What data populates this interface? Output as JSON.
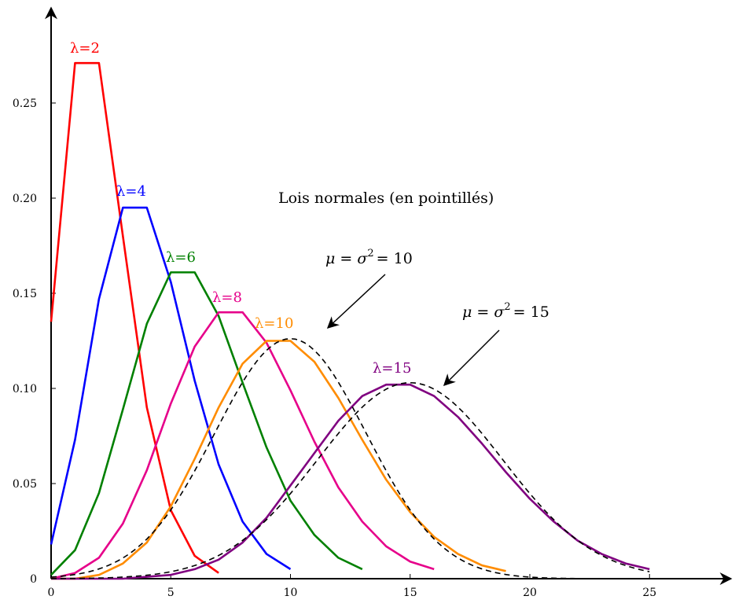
{
  "chart_data": {
    "type": "line",
    "title": "",
    "xlabel": "",
    "ylabel": "",
    "xlim": [
      0,
      28.5
    ],
    "ylim": [
      0,
      0.29
    ],
    "x_ticks": [
      "0",
      "5",
      "10",
      "15",
      "20",
      "25"
    ],
    "y_ticks": [
      "0",
      "0.05",
      "0.10",
      "0.15",
      "0.20",
      "0.25"
    ],
    "grid": false,
    "series": [
      {
        "name": "λ=2",
        "color": "#ff0000",
        "style": "solid",
        "x": [
          0,
          1,
          2,
          3,
          4,
          5,
          6,
          7
        ],
        "y": [
          0.135,
          0.271,
          0.271,
          0.18,
          0.09,
          0.036,
          0.012,
          0.003
        ]
      },
      {
        "name": "λ=4",
        "color": "#0000ff",
        "style": "solid",
        "x": [
          0,
          1,
          2,
          3,
          4,
          5,
          6,
          7,
          8,
          9,
          10
        ],
        "y": [
          0.018,
          0.073,
          0.147,
          0.195,
          0.195,
          0.156,
          0.104,
          0.06,
          0.03,
          0.013,
          0.005
        ]
      },
      {
        "name": "λ=6",
        "color": "#008000",
        "style": "solid",
        "x": [
          0,
          1,
          2,
          3,
          4,
          5,
          6,
          7,
          8,
          9,
          10,
          11,
          12,
          13
        ],
        "y": [
          0.002,
          0.015,
          0.045,
          0.089,
          0.134,
          0.161,
          0.161,
          0.138,
          0.103,
          0.069,
          0.041,
          0.023,
          0.011,
          0.005
        ]
      },
      {
        "name": "λ=8",
        "color": "#e6008a",
        "style": "solid",
        "x": [
          0,
          1,
          2,
          3,
          4,
          5,
          6,
          7,
          8,
          9,
          10,
          11,
          12,
          13,
          14,
          15,
          16
        ],
        "y": [
          0.0,
          0.003,
          0.011,
          0.029,
          0.057,
          0.092,
          0.122,
          0.14,
          0.14,
          0.124,
          0.099,
          0.072,
          0.048,
          0.03,
          0.017,
          0.009,
          0.005
        ]
      },
      {
        "name": "λ=10",
        "color": "#ff8c00",
        "style": "solid",
        "x": [
          0,
          1,
          2,
          3,
          4,
          5,
          6,
          7,
          8,
          9,
          10,
          11,
          12,
          13,
          14,
          15,
          16,
          17,
          18,
          19
        ],
        "y": [
          0.0,
          0.0,
          0.002,
          0.008,
          0.019,
          0.038,
          0.063,
          0.09,
          0.113,
          0.125,
          0.125,
          0.114,
          0.095,
          0.073,
          0.052,
          0.035,
          0.022,
          0.013,
          0.007,
          0.004
        ]
      },
      {
        "name": "λ=15",
        "color": "#800080",
        "style": "solid",
        "x": [
          0,
          1,
          2,
          3,
          4,
          5,
          6,
          7,
          8,
          9,
          10,
          11,
          12,
          13,
          14,
          15,
          16,
          17,
          18,
          19,
          20,
          21,
          22,
          23,
          24,
          25
        ],
        "y": [
          0.0,
          0.0,
          0.0,
          0.0,
          0.001,
          0.002,
          0.005,
          0.01,
          0.019,
          0.032,
          0.049,
          0.066,
          0.083,
          0.096,
          0.102,
          0.102,
          0.096,
          0.085,
          0.071,
          0.056,
          0.042,
          0.03,
          0.02,
          0.013,
          0.008,
          0.005
        ]
      },
      {
        "name": "μ=σ²=10",
        "color": "#000000",
        "style": "dashed",
        "mu": 10,
        "sigma2": 10,
        "x_range": [
          0,
          22
        ]
      },
      {
        "name": "μ=σ²=15",
        "color": "#000000",
        "style": "dashed",
        "mu": 15,
        "sigma2": 15,
        "x_range": [
          0,
          25
        ]
      }
    ],
    "annotations": {
      "normal_note": "Lois normales (en pointillés)",
      "mu10": {
        "mu": "μ",
        "sigma": "σ",
        "exp": "2",
        "eq": "=",
        "value": "10"
      },
      "mu15": {
        "mu": "μ",
        "sigma": "σ",
        "exp": "2",
        "eq": "=",
        "value": "15"
      }
    },
    "series_labels": [
      "λ=2",
      "λ=4",
      "λ=6",
      "λ=8",
      "λ=10",
      "λ=15"
    ]
  }
}
